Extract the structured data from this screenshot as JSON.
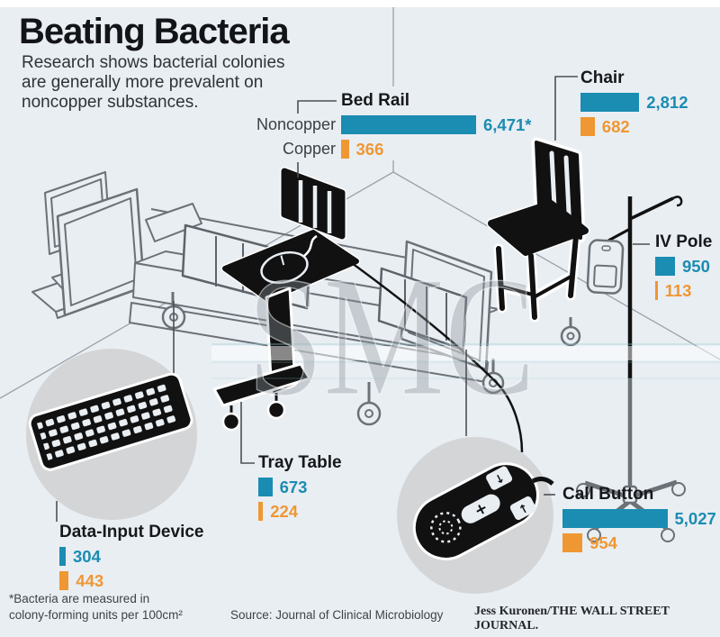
{
  "header": {
    "title": "Beating Bacteria",
    "subtitle_lines": [
      "Research shows bacterial colonies",
      "are generally more prevalent on",
      "noncopper substances."
    ]
  },
  "legend": {
    "noncopper_label": "Noncopper",
    "copper_label": "Copper"
  },
  "colors": {
    "noncopper": "#1b8cb2",
    "copper": "#ef9733",
    "background": "#e9eef3",
    "detail_circle": "#d3d5d7",
    "ink": "#111111"
  },
  "items": [
    {
      "id": "bed-rail",
      "label": "Bed Rail",
      "noncopper": 6471,
      "noncopper_display": "6,471*",
      "copper": 366,
      "copper_display": "366"
    },
    {
      "id": "chair",
      "label": "Chair",
      "noncopper": 2812,
      "noncopper_display": "2,812",
      "copper": 682,
      "copper_display": "682"
    },
    {
      "id": "iv-pole",
      "label": "IV Pole",
      "noncopper": 950,
      "noncopper_display": "950",
      "copper": 113,
      "copper_display": "113"
    },
    {
      "id": "tray-table",
      "label": "Tray Table",
      "noncopper": 673,
      "noncopper_display": "673",
      "copper": 224,
      "copper_display": "224"
    },
    {
      "id": "data-input-device",
      "label": "Data-Input Device",
      "noncopper": 304,
      "noncopper_display": "304",
      "copper": 443,
      "copper_display": "443"
    },
    {
      "id": "call-button",
      "label": "Call Button",
      "noncopper": 5027,
      "noncopper_display": "5,027",
      "copper": 954,
      "copper_display": "954"
    }
  ],
  "chart_data": {
    "type": "bar",
    "title": "Beating Bacteria",
    "subtitle": "Research shows bacterial colonies are generally more prevalent on noncopper substances.",
    "categories": [
      "Bed Rail",
      "Chair",
      "IV Pole",
      "Tray Table",
      "Data-Input Device",
      "Call Button"
    ],
    "series": [
      {
        "name": "Noncopper",
        "color": "#1b8cb2",
        "values": [
          6471,
          2812,
          950,
          673,
          304,
          5027
        ]
      },
      {
        "name": "Copper",
        "color": "#ef9733",
        "values": [
          366,
          682,
          113,
          224,
          443,
          954
        ]
      }
    ],
    "unit_note": "Bacteria are measured in colony-forming units per 100cm²",
    "source": "Journal of Clinical Microbiology",
    "legend_position": "first-group-row-labels",
    "grid": false
  },
  "watermark": "SMC",
  "footer": {
    "footnote_lines": [
      "*Bacteria are measured in",
      "colony-forming units per 100cm²"
    ],
    "source": "Source: Journal of Clinical Microbiology",
    "credit": "Jess Kuronen/THE WALL STREET JOURNAL."
  }
}
